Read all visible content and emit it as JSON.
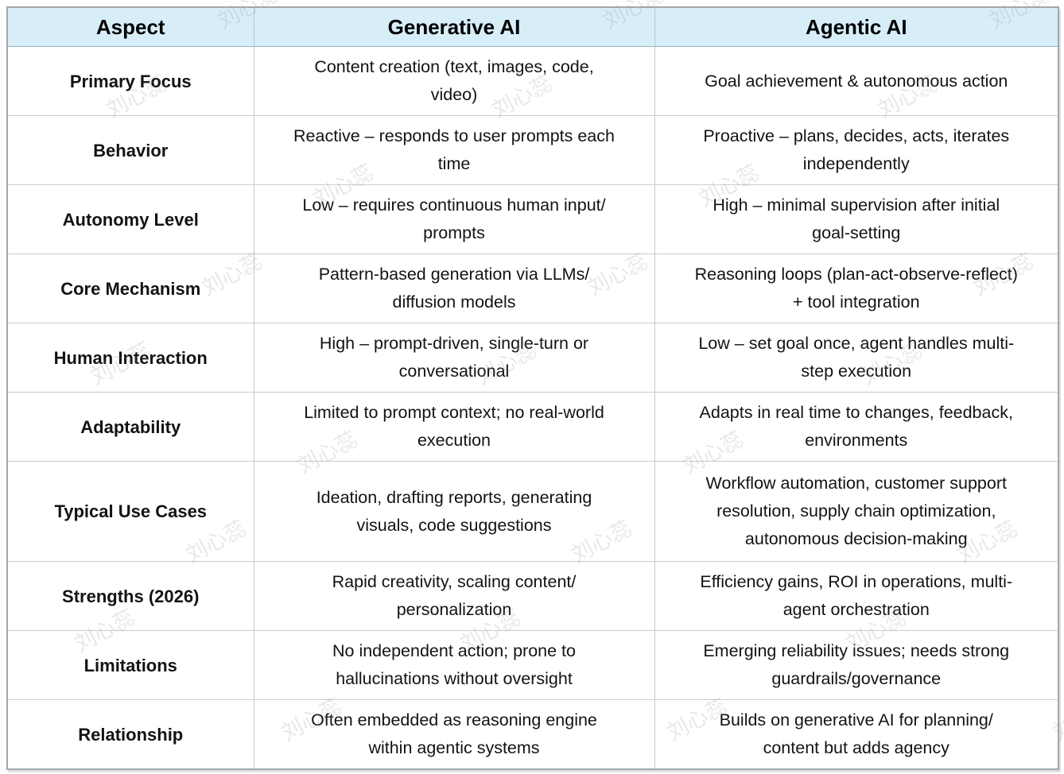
{
  "watermark": {
    "text": "刘心蕊"
  },
  "table": {
    "headers": [
      "Aspect",
      "Generative AI",
      "Agentic AI"
    ],
    "rows": [
      {
        "aspect": "Primary Focus",
        "generative": "Content creation (text, images, code,\nvideo)",
        "agentic": "Goal achievement & autonomous action"
      },
      {
        "aspect": "Behavior",
        "generative": "Reactive – responds to user prompts each\ntime",
        "agentic": "Proactive – plans, decides, acts, iterates\nindependently"
      },
      {
        "aspect": "Autonomy Level",
        "generative": "Low – requires continuous human input/\nprompts",
        "agentic": "High – minimal supervision after initial\ngoal-setting"
      },
      {
        "aspect": "Core Mechanism",
        "generative": "Pattern-based generation via LLMs/\ndiffusion models",
        "agentic": "Reasoning loops (plan-act-observe-reflect)\n+ tool integration"
      },
      {
        "aspect": "Human Interaction",
        "generative": "High – prompt-driven, single-turn or\nconversational",
        "agentic": "Low – set goal once, agent handles multi-\nstep execution"
      },
      {
        "aspect": "Adaptability",
        "generative": "Limited to prompt context; no real-world\nexecution",
        "agentic": "Adapts in real time to changes, feedback,\nenvironments"
      },
      {
        "aspect": "Typical Use Cases",
        "generative": "Ideation, drafting reports, generating\nvisuals, code suggestions",
        "agentic": "Workflow automation, customer support\nresolution, supply chain optimization,\nautonomous decision-making"
      },
      {
        "aspect": "Strengths (2026)",
        "generative": "Rapid creativity, scaling content/\npersonalization",
        "agentic": "Efficiency gains, ROI in operations, multi-\nagent orchestration"
      },
      {
        "aspect": "Limitations",
        "generative": "No independent action; prone to\nhallucinations without oversight",
        "agentic": "Emerging reliability issues; needs strong\nguardrails/governance"
      },
      {
        "aspect": "Relationship",
        "generative": "Often embedded as reasoning engine\nwithin agentic systems",
        "agentic": "Builds on generative AI for planning/\ncontent but adds agency"
      }
    ]
  },
  "colors": {
    "header_bg": "#d7eef9",
    "border": "#c8cccf",
    "outer_border": "#a3a8ad",
    "text": "#131313"
  }
}
